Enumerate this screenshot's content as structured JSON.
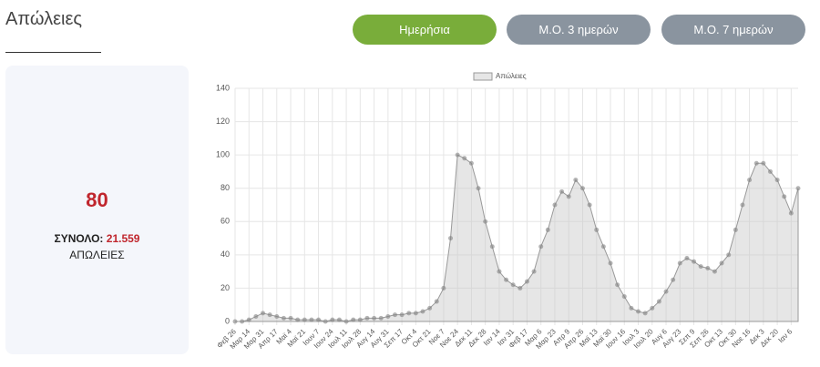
{
  "page": {
    "title": "Απώλειες",
    "buttons": [
      "Ημερήσια",
      "Μ.Ο. 3 ημερών",
      "Μ.Ο. 7 ημερών"
    ],
    "card": {
      "value": "80",
      "total_label": "ΣΥΝΟΛΟ:",
      "total": "21.559",
      "unit": "ΑΠΩΛΕΙΕΣ"
    }
  },
  "chart_data": {
    "type": "area",
    "categories": [
      "Φεβ 26",
      null,
      "Μαρ 14",
      null,
      "Μαρ 31",
      null,
      "Απρ 17",
      null,
      "Μαϊ 4",
      null,
      "Μαϊ 21",
      null,
      "Ιουν 7",
      null,
      "Ιουν 24",
      null,
      "Ιουλ 11",
      null,
      "Ιουλ 28",
      null,
      "Αυγ 14",
      null,
      "Αυγ 31",
      null,
      "Σεπ 17",
      null,
      "Οκτ 4",
      null,
      "Οκτ 21",
      null,
      "Νοε 7",
      null,
      "Νοε 24",
      null,
      "Δεκ 11",
      null,
      "Δεκ 28",
      null,
      "Ιαν 14",
      null,
      "Ιαν 31",
      null,
      "Φεβ 17",
      null,
      "Μαρ 6",
      null,
      "Μαρ 23",
      null,
      "Απρ 9",
      null,
      "Απρ 26",
      null,
      "Μαϊ 13",
      null,
      "Μαϊ 30",
      null,
      "Ιουν 16",
      null,
      "Ιουλ 3",
      null,
      "Ιουλ 20",
      null,
      "Αυγ 6",
      null,
      "Αυγ 23",
      null,
      "Σεπ 9",
      null,
      "Σεπ 26",
      null,
      "Οκτ 13",
      null,
      "Οκτ 30",
      null,
      "Νοε 16",
      null,
      "Δεκ 3",
      null,
      "Δεκ 20",
      null,
      "Ιαν 6",
      null
    ],
    "series": [
      {
        "name": "Απώλειες",
        "color": "#999999",
        "values": [
          0,
          0,
          1,
          3,
          5,
          4,
          3,
          2,
          2,
          1,
          1,
          1,
          1,
          0,
          1,
          1,
          0,
          1,
          1,
          2,
          2,
          2,
          3,
          4,
          4,
          5,
          5,
          6,
          8,
          12,
          20,
          50,
          100,
          98,
          95,
          80,
          60,
          45,
          30,
          25,
          22,
          20,
          24,
          30,
          45,
          55,
          70,
          78,
          75,
          85,
          80,
          70,
          55,
          45,
          35,
          22,
          15,
          8,
          6,
          5,
          8,
          12,
          18,
          25,
          35,
          38,
          36,
          33,
          32,
          30,
          35,
          40,
          55,
          70,
          85,
          95,
          95,
          90,
          85,
          75,
          65,
          80
        ]
      }
    ],
    "ylim": [
      0,
      140
    ],
    "yticks": [
      0,
      20,
      40,
      60,
      80,
      100,
      120,
      140
    ],
    "grid": true
  }
}
